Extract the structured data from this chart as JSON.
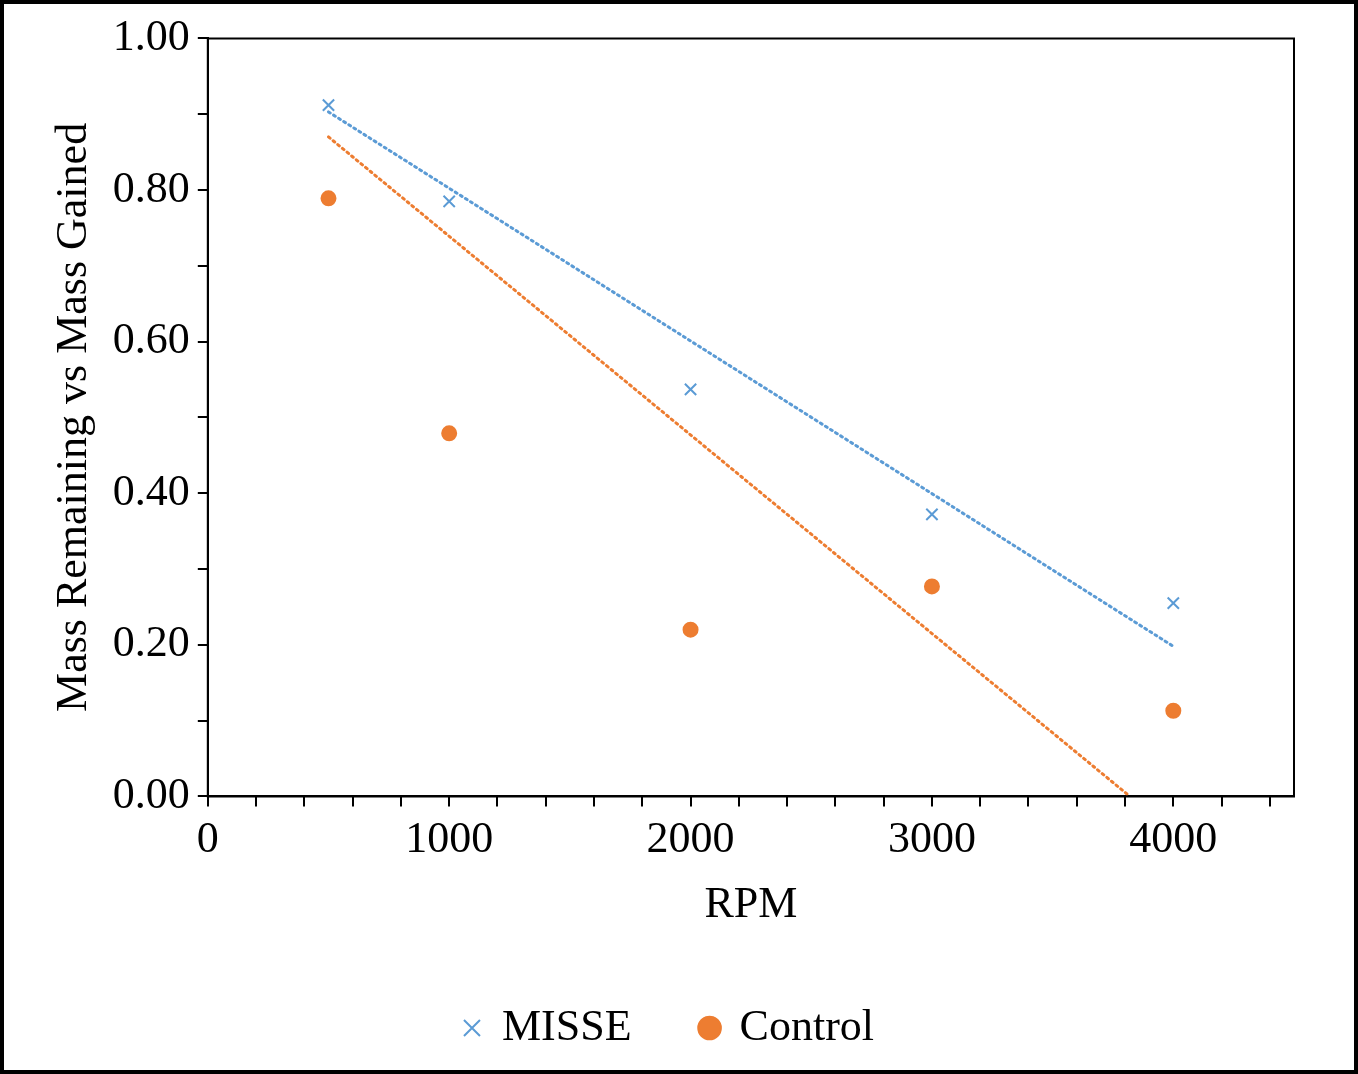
{
  "chart_data": {
    "type": "scatter",
    "xlabel": "RPM",
    "ylabel": "Mass Remaining vs Mass Gained",
    "xlim": [
      0,
      4500
    ],
    "ylim": [
      0,
      1
    ],
    "xticks": [
      0,
      {
        "value": 200,
        "label": null
      },
      {
        "value": 400,
        "label": null
      },
      {
        "value": 600,
        "label": null
      },
      {
        "value": 800,
        "label": null
      },
      1000,
      {
        "value": 1200,
        "label": null
      },
      {
        "value": 1400,
        "label": null
      },
      {
        "value": 1600,
        "label": null
      },
      {
        "value": 1800,
        "label": null
      },
      2000,
      {
        "value": 2200,
        "label": null
      },
      {
        "value": 2400,
        "label": null
      },
      {
        "value": 2600,
        "label": null
      },
      {
        "value": 2800,
        "label": null
      },
      3000,
      {
        "value": 3200,
        "label": null
      },
      {
        "value": 3400,
        "label": null
      },
      {
        "value": 3600,
        "label": null
      },
      {
        "value": 3800,
        "label": null
      },
      4000,
      {
        "value": 4200,
        "label": null
      },
      {
        "value": 4400,
        "label": null
      }
    ],
    "yticks": [
      {
        "value": 0,
        "label": "0.00"
      },
      {
        "value": 0.1,
        "label": null
      },
      {
        "value": 0.2,
        "label": "0.20"
      },
      {
        "value": 0.3,
        "label": null
      },
      {
        "value": 0.4,
        "label": "0.40"
      },
      {
        "value": 0.5,
        "label": null
      },
      {
        "value": 0.6,
        "label": "0.60"
      },
      {
        "value": 0.7,
        "label": null
      },
      {
        "value": 0.8,
        "label": "0.80"
      },
      {
        "value": 0.9,
        "label": null
      },
      {
        "value": 1,
        "label": "1.00"
      }
    ],
    "grid": false,
    "legend": "bottom",
    "series": [
      {
        "name": "MISSE",
        "marker": "cross",
        "color": "#5b9bd5",
        "x": [
          500,
          1000,
          2000,
          3000,
          4000
        ],
        "values": [
          0.912,
          0.785,
          0.537,
          0.372,
          0.255
        ]
      },
      {
        "name": "Control",
        "marker": "circle",
        "color": "#ed7d31",
        "x": [
          500,
          1000,
          2000,
          3000,
          4000
        ],
        "values": [
          0.789,
          0.479,
          0.22,
          0.277,
          0.113
        ]
      },
      {
        "type": "line",
        "marker": "none",
        "line_style": "dotted",
        "color": "#5b9bd5",
        "x": [
          500,
          4000
        ],
        "values": [
          0.903,
          0.198
        ]
      },
      {
        "type": "line",
        "marker": "none",
        "line_style": "dotted",
        "color": "#ed7d31",
        "x": [
          500,
          3820
        ],
        "values": [
          0.87,
          0
        ]
      }
    ]
  }
}
